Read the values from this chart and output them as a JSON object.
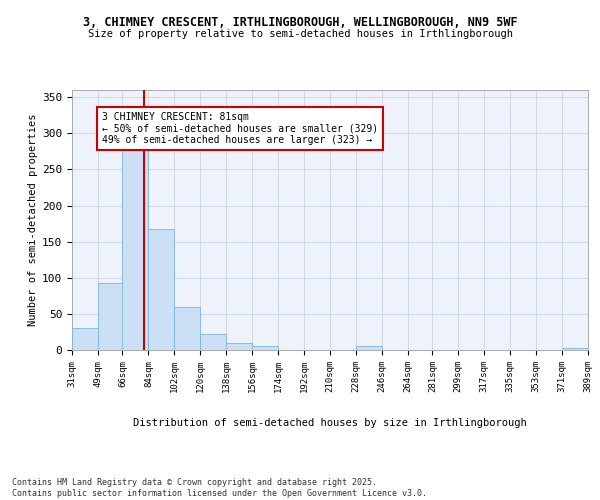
{
  "title_line1": "3, CHIMNEY CRESCENT, IRTHLINGBOROUGH, WELLINGBOROUGH, NN9 5WF",
  "title_line2": "Size of property relative to semi-detached houses in Irthlingborough",
  "xlabel": "Distribution of semi-detached houses by size in Irthlingborough",
  "ylabel": "Number of semi-detached properties",
  "footnote": "Contains HM Land Registry data © Crown copyright and database right 2025.\nContains public sector information licensed under the Open Government Licence v3.0.",
  "bar_edges": [
    31,
    49,
    66,
    84,
    102,
    120,
    138,
    156,
    174,
    192,
    210,
    228,
    246,
    264,
    281,
    299,
    317,
    335,
    353,
    371,
    389
  ],
  "bar_heights": [
    30,
    93,
    278,
    168,
    60,
    22,
    10,
    5,
    0,
    0,
    0,
    5,
    0,
    0,
    0,
    0,
    0,
    0,
    0,
    3
  ],
  "bar_color": "#cce0f5",
  "bar_edge_color": "#7cb4e0",
  "grid_color": "#d0d8e8",
  "background_color": "#eef2fb",
  "property_size": 81,
  "red_line_color": "#cc0000",
  "annotation_text": "3 CHIMNEY CRESCENT: 81sqm\n← 50% of semi-detached houses are smaller (329)\n49% of semi-detached houses are larger (323) →",
  "annotation_box_color": "#ffffff",
  "annotation_box_edge": "#cc0000",
  "ylim": [
    0,
    360
  ],
  "yticks": [
    0,
    50,
    100,
    150,
    200,
    250,
    300,
    350
  ],
  "tick_labels": [
    "31sqm",
    "49sqm",
    "66sqm",
    "84sqm",
    "102sqm",
    "120sqm",
    "138sqm",
    "156sqm",
    "174sqm",
    "192sqm",
    "210sqm",
    "228sqm",
    "246sqm",
    "264sqm",
    "281sqm",
    "299sqm",
    "317sqm",
    "335sqm",
    "353sqm",
    "371sqm",
    "389sqm"
  ]
}
